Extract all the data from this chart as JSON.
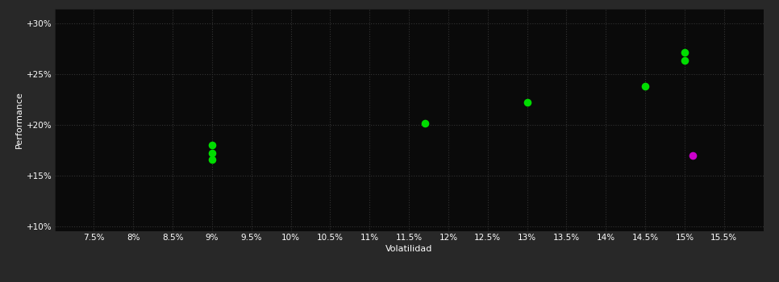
{
  "background_color": "#282828",
  "plot_bg_color": "#0a0a0a",
  "grid_color": "#333333",
  "grid_style": "--",
  "xlabel": "Volatilidad",
  "ylabel": "Performance",
  "xlim": [
    0.07,
    0.16
  ],
  "ylim": [
    0.095,
    0.315
  ],
  "xticks": [
    0.075,
    0.08,
    0.085,
    0.09,
    0.095,
    0.1,
    0.105,
    0.11,
    0.115,
    0.12,
    0.125,
    0.13,
    0.135,
    0.14,
    0.145,
    0.15,
    0.155
  ],
  "yticks": [
    0.1,
    0.15,
    0.2,
    0.25,
    0.3
  ],
  "ytick_labels": [
    "+10%",
    "+15%",
    "+20%",
    "+25%",
    "+30%"
  ],
  "xtick_labels": [
    "7.5%",
    "8%",
    "8.5%",
    "9%",
    "9.5%",
    "10%",
    "10.5%",
    "11%",
    "11.5%",
    "12%",
    "12.5%",
    "13%",
    "13.5%",
    "14%",
    "14.5%",
    "15%",
    "15.5%"
  ],
  "green_points": [
    [
      0.09,
      0.18
    ],
    [
      0.09,
      0.172
    ],
    [
      0.09,
      0.166
    ],
    [
      0.117,
      0.202
    ],
    [
      0.13,
      0.222
    ],
    [
      0.145,
      0.238
    ],
    [
      0.15,
      0.272
    ],
    [
      0.15,
      0.264
    ]
  ],
  "magenta_points": [
    [
      0.151,
      0.17
    ]
  ],
  "green_color": "#00dd00",
  "magenta_color": "#cc00cc",
  "point_size": 35,
  "label_color": "#ffffff",
  "tick_color": "#ffffff",
  "font_size_labels": 8,
  "font_size_ticks": 7.5
}
